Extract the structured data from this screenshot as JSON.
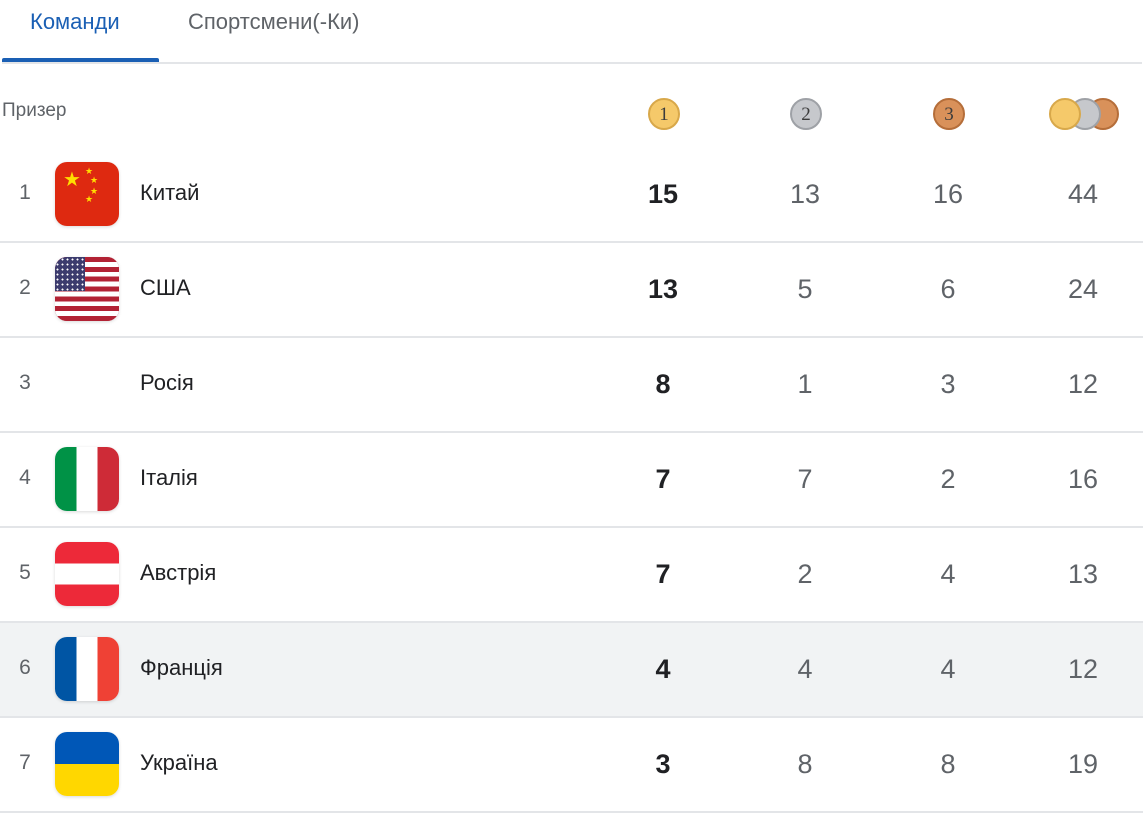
{
  "tabs": [
    {
      "label": "Команди",
      "active": true
    },
    {
      "label": "Спортсмени(-Ки)",
      "active": false
    }
  ],
  "header": {
    "label": "Призер",
    "medals": {
      "gold": "1",
      "silver": "2",
      "bronze": "3"
    },
    "total_icon": "medal-stack-icon"
  },
  "rows": [
    {
      "rank": "1",
      "country": "Китай",
      "flag": "china-flag-icon",
      "gold": "15",
      "silver": "13",
      "bronze": "16",
      "total": "44"
    },
    {
      "rank": "2",
      "country": "США",
      "flag": "usa-flag-icon",
      "gold": "13",
      "silver": "5",
      "bronze": "6",
      "total": "24"
    },
    {
      "rank": "3",
      "country": "Росія",
      "flag": "blank-flag-icon",
      "gold": "8",
      "silver": "1",
      "bronze": "3",
      "total": "12"
    },
    {
      "rank": "4",
      "country": "Італія",
      "flag": "italy-flag-icon",
      "gold": "7",
      "silver": "7",
      "bronze": "2",
      "total": "16"
    },
    {
      "rank": "5",
      "country": "Австрія",
      "flag": "austria-flag-icon",
      "gold": "7",
      "silver": "2",
      "bronze": "4",
      "total": "13"
    },
    {
      "rank": "6",
      "country": "Франція",
      "flag": "france-flag-icon",
      "gold": "4",
      "silver": "4",
      "bronze": "4",
      "total": "12"
    },
    {
      "rank": "7",
      "country": "Україна",
      "flag": "ukraine-flag-icon",
      "gold": "3",
      "silver": "8",
      "bronze": "8",
      "total": "19"
    }
  ],
  "colors": {
    "accent": "#1a5fb4",
    "gold_medal": "#f5c96a",
    "silver_medal": "#c6c8cc",
    "bronze_medal": "#d9915a",
    "hover_row": "#f1f3f4"
  }
}
